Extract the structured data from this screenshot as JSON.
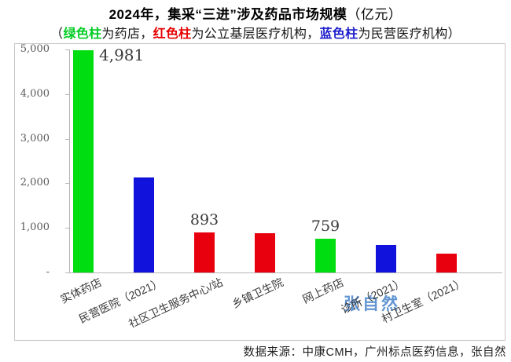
{
  "title": {
    "main": "2024年，集采“三进”涉及药品市场规模",
    "unit_suffix": "（亿元）"
  },
  "subtitle": {
    "prefix": "（",
    "suffix": "）",
    "segments": [
      {
        "text": "绿色柱",
        "color": "#00cc22",
        "bold": true
      },
      {
        "text": "为药店，",
        "color": "#151515",
        "bold": false
      },
      {
        "text": "红色柱",
        "color": "#e60000",
        "bold": true
      },
      {
        "text": "为公立基层医疗机构，",
        "color": "#151515",
        "bold": false
      },
      {
        "text": "蓝色柱",
        "color": "#1c1ccc",
        "bold": true
      },
      {
        "text": "为民营医疗机构",
        "color": "#151515",
        "bold": false
      }
    ]
  },
  "chart_data": {
    "type": "bar",
    "title": "2024年，集采“三进”涉及药品市场规模（亿元）",
    "categories": [
      "实体药店",
      "民营医院（2021）",
      "社区卫生服务中心/站",
      "乡镇卫生院",
      "网上药店",
      "诊所（2021）",
      "村卫生室（2021）"
    ],
    "values": [
      4981,
      2130,
      893,
      875,
      759,
      620,
      420
    ],
    "values_note": "bars without printed labels (民营医院/乡镇卫生院/诊所/村卫生室) estimated from axis gridlines",
    "bar_color_names": [
      "green",
      "blue",
      "red",
      "red",
      "green",
      "blue",
      "red"
    ],
    "palette": {
      "green": "#00dd11",
      "blue": "#1212dd",
      "red": "#e8000f"
    },
    "data_labels": [
      {
        "index": 0,
        "text": "4,981",
        "placement": "right"
      },
      {
        "index": 2,
        "text": "893",
        "placement": "above"
      },
      {
        "index": 4,
        "text": "759",
        "placement": "above"
      }
    ],
    "ylim": [
      0,
      5000
    ],
    "yticks": [
      {
        "label": "5,000",
        "value": 5000
      },
      {
        "label": "4,000",
        "value": 4000
      },
      {
        "label": "3,000",
        "value": 3000
      },
      {
        "label": "2,000",
        "value": 2000
      },
      {
        "label": "1,000",
        "value": 1000
      },
      {
        "label": "-",
        "value": 0
      }
    ],
    "grid": false,
    "legend_position": "none"
  },
  "watermark": {
    "text": "张自然",
    "color": "#3b7bc8"
  },
  "source_note": "数据来源：中康CMH，广州标点医药信息，张自然"
}
